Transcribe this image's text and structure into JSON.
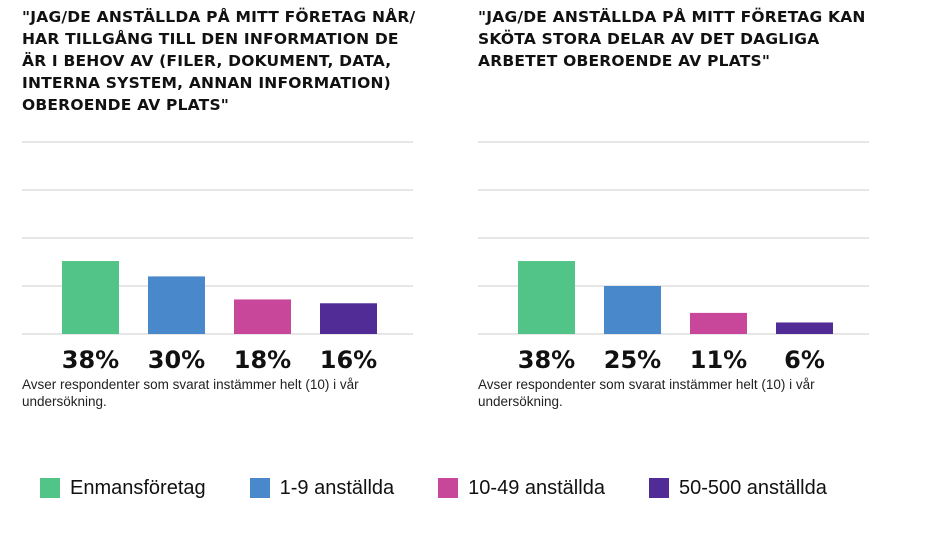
{
  "chart_data": [
    {
      "type": "bar",
      "title": "\"JAG/DE ANSTÄLLDA PÅ MITT FÖRETAG NÅR/ HAR TILLGÅNG TILL DEN INFORMATION DE ÄR I BEHOV AV (FILER, DOKUMENT, DATA, INTERNA SYSTEM, ANNAN INFORMATION) OBEROENDE AV PLATS\"",
      "categories": [
        "Enmansföretag",
        "1-9 anställda",
        "10-49 anställda",
        "50-500 anställda"
      ],
      "values": [
        38,
        30,
        18,
        16
      ],
      "value_labels": [
        "38%",
        "30%",
        "18%",
        "16%"
      ],
      "ylim": [
        0,
        100
      ],
      "grid": true,
      "note": "Avser respondenter som svarat instämmer helt (10) i vår undersökning."
    },
    {
      "type": "bar",
      "title": "\"JAG/DE ANSTÄLLDA PÅ MITT FÖRETAG KAN SKÖTA STORA DELAR AV DET DAGLIGA ARBETET OBEROENDE AV PLATS\"",
      "categories": [
        "Enmansföretag",
        "1-9 anställda",
        "10-49 anställda",
        "50-500 anställda"
      ],
      "values": [
        38,
        25,
        11,
        6
      ],
      "value_labels": [
        "38%",
        "25%",
        "11%",
        "6%"
      ],
      "ylim": [
        0,
        100
      ],
      "grid": true,
      "note": "Avser respondenter som svarat instämmer helt (10) i vår undersökning."
    }
  ],
  "legend": {
    "placement": "bottom",
    "items": [
      {
        "label": "Enmansföretag",
        "color": "#52c487"
      },
      {
        "label": "1-9 anställda",
        "color": "#4a88cc"
      },
      {
        "label": "10-49 anställda",
        "color": "#c9479b"
      },
      {
        "label": "50-500 anställda",
        "color": "#512b96"
      }
    ]
  },
  "colors": {
    "grid": "#e6e6e6",
    "text": "#111111"
  }
}
